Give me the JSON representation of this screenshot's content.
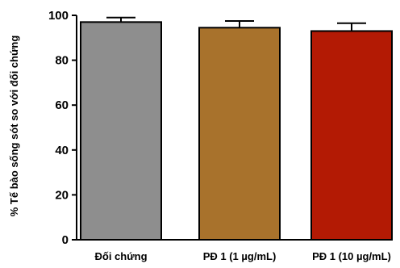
{
  "chart_data": {
    "type": "bar",
    "categories": [
      "Đối chứng",
      "PĐ 1 (1 µg/mL)",
      "PĐ 1 (10 µg/mL)"
    ],
    "values": [
      97,
      94.5,
      93
    ],
    "errors": [
      2,
      3,
      3.5
    ],
    "colors": [
      "#8e8e8e",
      "#a8722c",
      "#b31a04"
    ],
    "title": "",
    "xlabel": "",
    "ylabel": "% Tế bào sống sót so với đối chứng",
    "ylim": [
      0,
      100
    ],
    "yticks": [
      0,
      20,
      40,
      60,
      80,
      100
    ],
    "grid": false,
    "legend": "none"
  }
}
